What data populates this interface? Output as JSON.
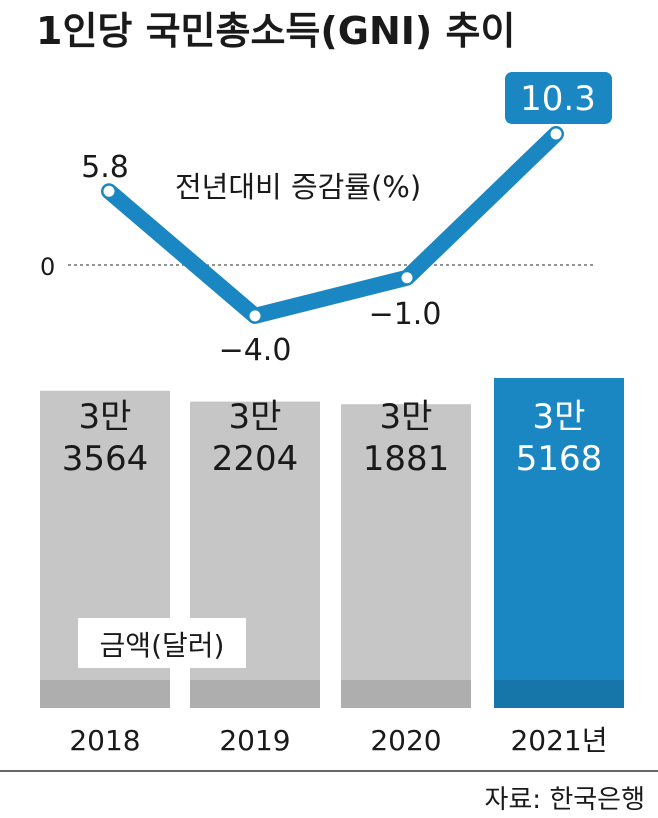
{
  "chart_data": {
    "type": "bar",
    "title": "1인당 국민총소득(GNI) 추이",
    "categories": [
      "2018",
      "2019",
      "2020",
      "2021년"
    ],
    "bars": {
      "label": "금액(달러)",
      "values": [
        33564,
        32204,
        31881,
        35168
      ],
      "value_labels": [
        [
          "3만",
          "3564"
        ],
        [
          "3만",
          "2204"
        ],
        [
          "3만",
          "1881"
        ],
        [
          "3만",
          "5168"
        ]
      ],
      "colors": [
        "#c6c6c6",
        "#c6c6c6",
        "#c6c6c6",
        "#1a87c2"
      ]
    },
    "line": {
      "label": "전년대비 증감률(%)",
      "values": [
        5.8,
        -4.0,
        -1.0,
        10.3
      ],
      "value_labels": [
        "5.8",
        "−4.0",
        "−1.0",
        "10.3"
      ],
      "zero_label": "0",
      "color": "#1a87c2"
    },
    "source": "자료: 한국은행"
  }
}
